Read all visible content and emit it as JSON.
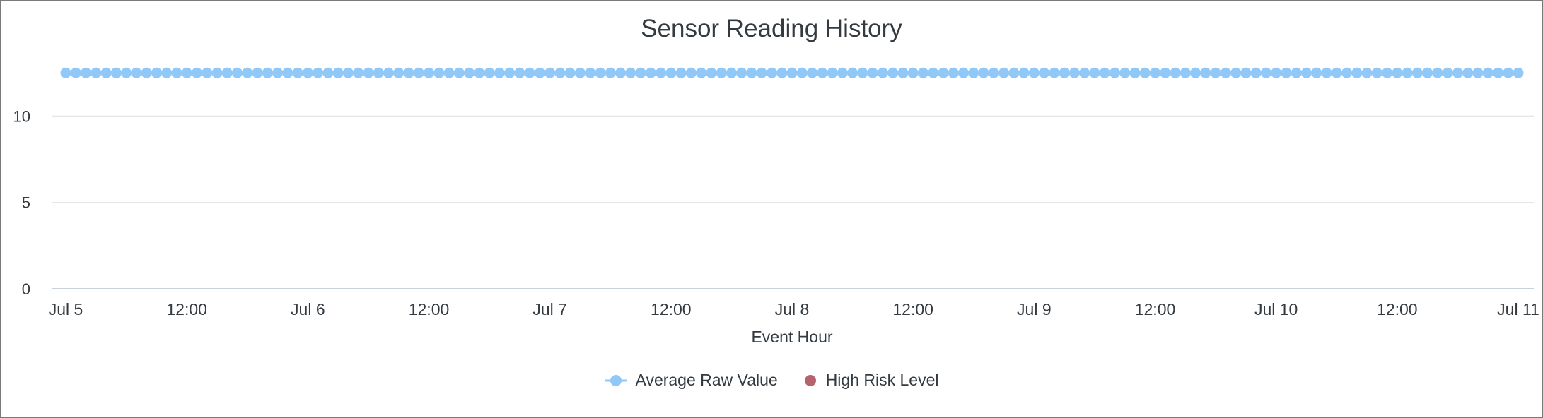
{
  "chart_data": {
    "type": "line",
    "title": "Sensor Reading History",
    "xlabel": "Event Hour",
    "ylabel": "",
    "x_start": "Jul 5 00:00",
    "x_end": "Jul 11 00:00",
    "x_step": "1 hour",
    "xlim": [
      "Jul 5 00:00",
      "Jul 11 00:00"
    ],
    "ylim": [
      0,
      13
    ],
    "yticks": [
      0,
      5,
      10
    ],
    "xticks": [
      "Jul 5",
      "12:00",
      "Jul 6",
      "12:00",
      "Jul 7",
      "12:00",
      "Jul 8",
      "12:00",
      "Jul 9",
      "12:00",
      "Jul 10",
      "12:00",
      "Jul 11"
    ],
    "grid": true,
    "legend_position": "bottom",
    "series": [
      {
        "name": "Average Raw Value",
        "color": "#90c8f8",
        "values": [
          12.5,
          12.5,
          12.5,
          12.5,
          12.5,
          12.5,
          12.5,
          12.5,
          12.5,
          12.5,
          12.5,
          12.5,
          12.5,
          12.5,
          12.5,
          12.5,
          12.5,
          12.5,
          12.5,
          12.5,
          12.5,
          12.5,
          12.5,
          12.5,
          12.5,
          12.5,
          12.5,
          12.5,
          12.5,
          12.5,
          12.5,
          12.5,
          12.5,
          12.5,
          12.5,
          12.5,
          12.5,
          12.5,
          12.5,
          12.5,
          12.5,
          12.5,
          12.5,
          12.5,
          12.5,
          12.5,
          12.5,
          12.5,
          12.5,
          12.5,
          12.5,
          12.5,
          12.5,
          12.5,
          12.5,
          12.5,
          12.5,
          12.5,
          12.5,
          12.5,
          12.5,
          12.5,
          12.5,
          12.5,
          12.5,
          12.5,
          12.5,
          12.5,
          12.5,
          12.5,
          12.5,
          12.5,
          12.5,
          12.5,
          12.5,
          12.5,
          12.5,
          12.5,
          12.5,
          12.5,
          12.5,
          12.5,
          12.5,
          12.5,
          12.5,
          12.5,
          12.5,
          12.5,
          12.5,
          12.5,
          12.5,
          12.5,
          12.5,
          12.5,
          12.5,
          12.5,
          12.5,
          12.5,
          12.5,
          12.5,
          12.5,
          12.5,
          12.5,
          12.5,
          12.5,
          12.5,
          12.5,
          12.5,
          12.5,
          12.5,
          12.5,
          12.5,
          12.5,
          12.5,
          12.5,
          12.5,
          12.5,
          12.5,
          12.5,
          12.5,
          12.5,
          12.5,
          12.5,
          12.5,
          12.5,
          12.5,
          12.5,
          12.5,
          12.5,
          12.5,
          12.5,
          12.5,
          12.5,
          12.5,
          12.5,
          12.5,
          12.5,
          12.5,
          12.5,
          12.5,
          12.5,
          12.5,
          12.5,
          12.5,
          12.5
        ]
      },
      {
        "name": "High Risk Level",
        "color": "#b5646c",
        "values": []
      }
    ]
  }
}
